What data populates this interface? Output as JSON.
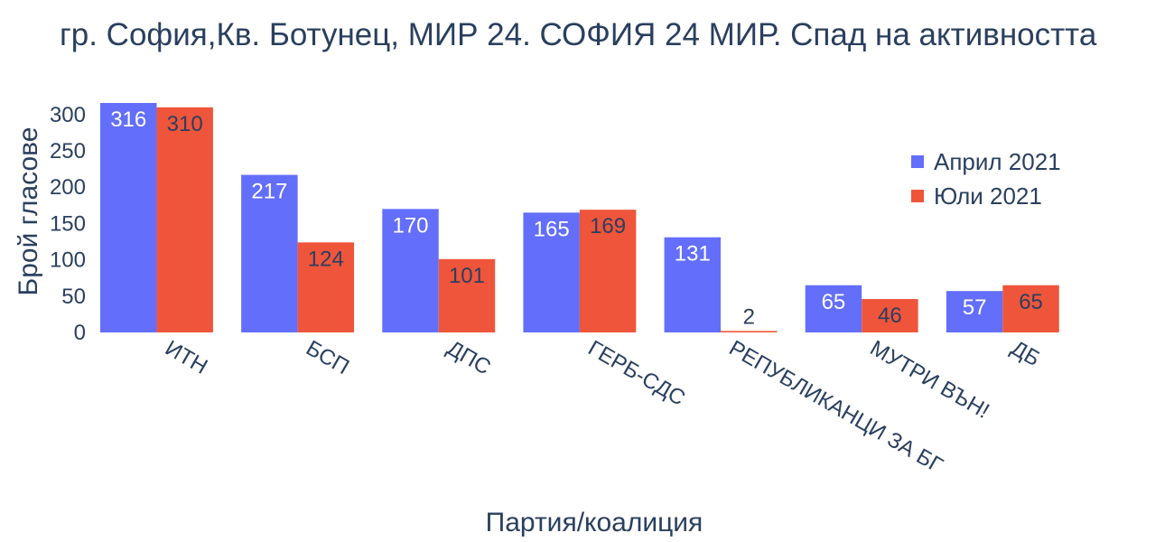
{
  "chart_data": {
    "type": "bar",
    "title": "гр. София,Кв. Ботунец, МИР 24. СОФИЯ 24 МИР. Спад на активността",
    "xlabel": "Партия/коалиция",
    "ylabel": "Брой гласове",
    "categories": [
      "ИТН",
      "БСП",
      "ДПС",
      "ГЕРБ-СДС",
      "РЕПУБЛИКАНЦИ ЗА БГ",
      "МУТРИ ВЪН!",
      "ДБ"
    ],
    "series": [
      {
        "name": "Април 2021",
        "color": "#636efa",
        "values": [
          316,
          217,
          170,
          165,
          131,
          65,
          57
        ]
      },
      {
        "name": "Юли 2021",
        "color": "#ef553b",
        "values": [
          310,
          124,
          101,
          169,
          2,
          46,
          65
        ]
      }
    ],
    "ylim": [
      0,
      316
    ],
    "yticks": [
      0,
      50,
      100,
      150,
      200,
      250,
      300
    ],
    "legend_position": "right",
    "grid": false
  }
}
